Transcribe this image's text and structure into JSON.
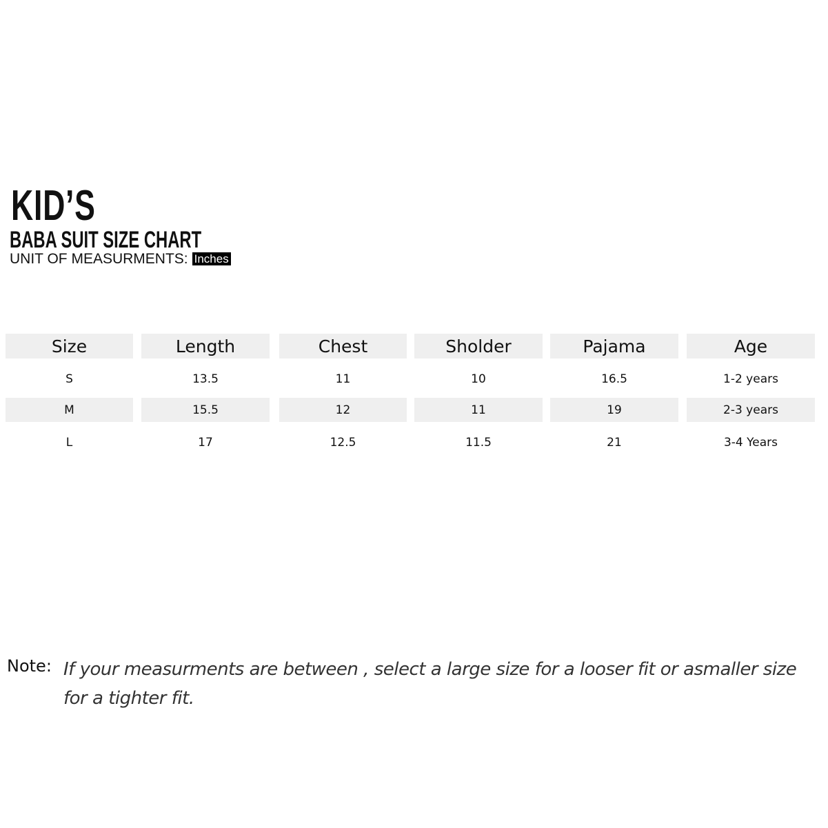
{
  "header": {
    "title": "KID’S",
    "subtitle": "BABA SUIT SIZE CHART",
    "unit_label": "UNIT OF MEASURMENTS:",
    "unit_value": "Inches"
  },
  "table": {
    "headers": [
      "Size",
      "Length",
      "Chest",
      "Sholder",
      "Pajama",
      "Age"
    ],
    "rows": [
      [
        "S",
        "13.5",
        "11",
        "10",
        "16.5",
        "1-2 years"
      ],
      [
        "M",
        "15.5",
        "12",
        "11",
        "19",
        "2-3 years"
      ],
      [
        "L",
        "17",
        "12.5",
        "11.5",
        "21",
        "3-4 Years"
      ]
    ],
    "shade_color": "#efefef"
  },
  "note": {
    "label": "Note:",
    "text": "If your measurments are between , select a large size for a looser fit or asmaller size for a tighter fit."
  }
}
